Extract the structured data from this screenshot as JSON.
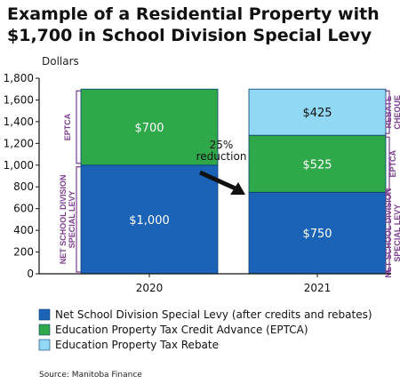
{
  "chart_data": {
    "type": "bar",
    "stacked": true,
    "title": "Example of a Residential Property with $1,700 in School Division Special Levy",
    "title_lines": [
      "Example of a Residential Property with",
      "$1,700 in School Division Special Levy"
    ],
    "ylabel": "Dollars",
    "ylim": [
      0,
      1800
    ],
    "yticks": [
      "0",
      "200",
      "400",
      "600",
      "800",
      "1,000",
      "1,200",
      "1,400",
      "1,600",
      "1,800"
    ],
    "grid": false,
    "categories": [
      "2020",
      "2021"
    ],
    "series": [
      {
        "name": "Net School Division Special Levy (after credits and rebates)",
        "color": "#1b63b6",
        "values": [
          1000,
          750
        ],
        "labels": [
          "$1,000",
          "$750"
        ]
      },
      {
        "name": "Education Property Tax Credit Advance (EPTCA)",
        "color": "#2fa84a",
        "values": [
          700,
          525
        ],
        "labels": [
          "$700",
          "$525"
        ]
      },
      {
        "name": "Education Property Tax Rebate",
        "color": "#91d8f4",
        "values": [
          0,
          425
        ],
        "labels": [
          "",
          "$425"
        ]
      }
    ],
    "legend_position": "bottom",
    "annotation": {
      "lines": [
        "25%",
        "reduction"
      ]
    },
    "bracket_color": "#7c3c8f",
    "brackets_left": [
      {
        "lines": [
          "NET SCHOOL DIVISION",
          "SPECIAL LEVY"
        ],
        "from": 0,
        "to": 1000
      },
      {
        "lines": [
          "EPTCA"
        ],
        "from": 1000,
        "to": 1700
      }
    ],
    "brackets_right": [
      {
        "lines": [
          "NET SCHOOL DIVISION",
          "SPECIAL LEVY"
        ],
        "from": 0,
        "to": 750
      },
      {
        "lines": [
          "EPTCA"
        ],
        "from": 750,
        "to": 1275
      },
      {
        "lines": [
          "REBATE",
          "CHEQUE"
        ],
        "from": 1275,
        "to": 1700
      }
    ],
    "source": "Source: Manitoba Finance"
  }
}
